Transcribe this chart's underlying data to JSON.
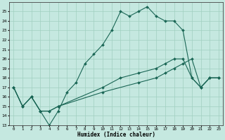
{
  "bg_color": "#c5e8e0",
  "grid_color": "#a0cfc0",
  "line_color": "#1a6655",
  "line1_x": [
    0,
    1,
    2,
    3,
    4,
    5,
    6,
    7,
    8,
    9,
    10,
    11,
    12,
    13,
    14,
    15,
    16,
    17,
    18,
    19,
    20,
    21,
    22,
    23
  ],
  "line1_y": [
    17,
    15,
    16,
    14.5,
    13,
    14.5,
    16.5,
    17.5,
    19.5,
    20.5,
    21.5,
    23,
    25,
    24.5,
    25,
    25.5,
    24.5,
    24,
    24,
    23,
    18,
    17,
    18,
    18
  ],
  "line2_x": [
    0,
    1,
    2,
    3,
    4,
    5,
    10,
    12,
    14,
    16,
    17,
    18,
    19,
    20,
    21,
    22,
    23
  ],
  "line2_y": [
    17,
    15,
    16,
    14.5,
    14.5,
    15,
    17,
    18,
    18.5,
    19,
    19.5,
    20,
    20,
    18,
    17,
    18,
    18
  ],
  "line3_x": [
    0,
    1,
    2,
    3,
    4,
    5,
    10,
    14,
    16,
    17,
    18,
    19,
    20,
    21,
    22,
    23
  ],
  "line3_y": [
    17,
    15,
    16,
    14.5,
    14.5,
    15,
    16.5,
    17.5,
    18,
    18.5,
    19,
    19.5,
    20,
    17,
    18,
    18
  ],
  "xlabel": "Humidex (Indice chaleur)",
  "xlim": [
    0,
    23
  ],
  "ylim": [
    13,
    26
  ],
  "yticks": [
    13,
    14,
    15,
    16,
    17,
    18,
    19,
    20,
    21,
    22,
    23,
    24,
    25
  ],
  "xticks": [
    0,
    1,
    2,
    3,
    4,
    5,
    6,
    7,
    8,
    9,
    10,
    11,
    12,
    13,
    14,
    15,
    16,
    17,
    18,
    19,
    20,
    21,
    22,
    23
  ]
}
